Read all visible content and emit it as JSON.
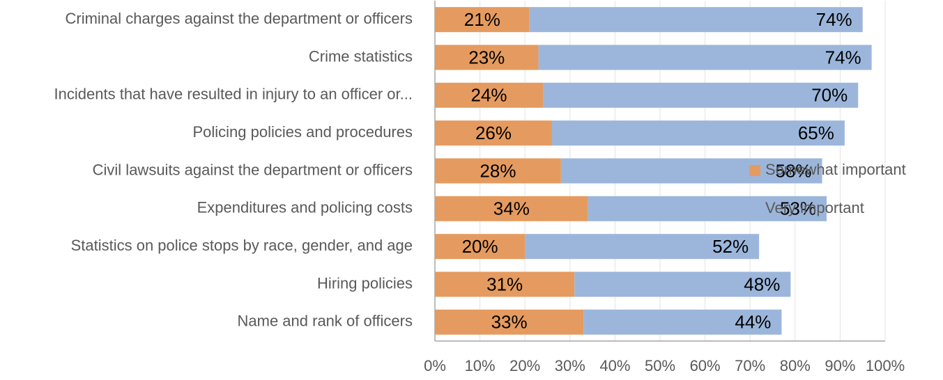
{
  "chart_data": {
    "type": "stacked_barh",
    "categories": [
      "Criminal charges against the department or officers",
      "Crime statistics",
      "Incidents that have resulted in injury to an officer or...",
      "Policing policies and procedures",
      "Civil lawsuits against the department or officers",
      "Expenditures and policing costs",
      "Statistics on police stops by race, gender, and age",
      "Hiring policies",
      "Name and rank of officers"
    ],
    "series": [
      {
        "name": "Somewhat important",
        "color": "#e59b5f",
        "values": [
          21,
          23,
          24,
          26,
          28,
          34,
          20,
          31,
          33
        ],
        "value_labels": [
          "21%",
          "23%",
          "24%",
          "26%",
          "28%",
          "34%",
          "20%",
          "31%",
          "33%"
        ]
      },
      {
        "name": "Very important",
        "color": "#9cb6db",
        "values": [
          74,
          74,
          70,
          65,
          58,
          53,
          52,
          48,
          44
        ],
        "value_labels": [
          "74%",
          "74%",
          "70%",
          "65%",
          "58%",
          "53%",
          "52%",
          "48%",
          "44%"
        ]
      }
    ],
    "xlim": [
      0,
      100
    ],
    "xticks": [
      {
        "value": 0,
        "label": "0%"
      },
      {
        "value": 10,
        "label": "10%"
      },
      {
        "value": 20,
        "label": "20%"
      },
      {
        "value": 30,
        "label": "30%"
      },
      {
        "value": 40,
        "label": "40%"
      },
      {
        "value": 50,
        "label": "50%"
      },
      {
        "value": 60,
        "label": "60%"
      },
      {
        "value": 70,
        "label": "70%"
      },
      {
        "value": 80,
        "label": "80%"
      },
      {
        "value": 90,
        "label": "90%"
      },
      {
        "value": 100,
        "label": "100%"
      }
    ],
    "grid": true,
    "legend": "right"
  }
}
